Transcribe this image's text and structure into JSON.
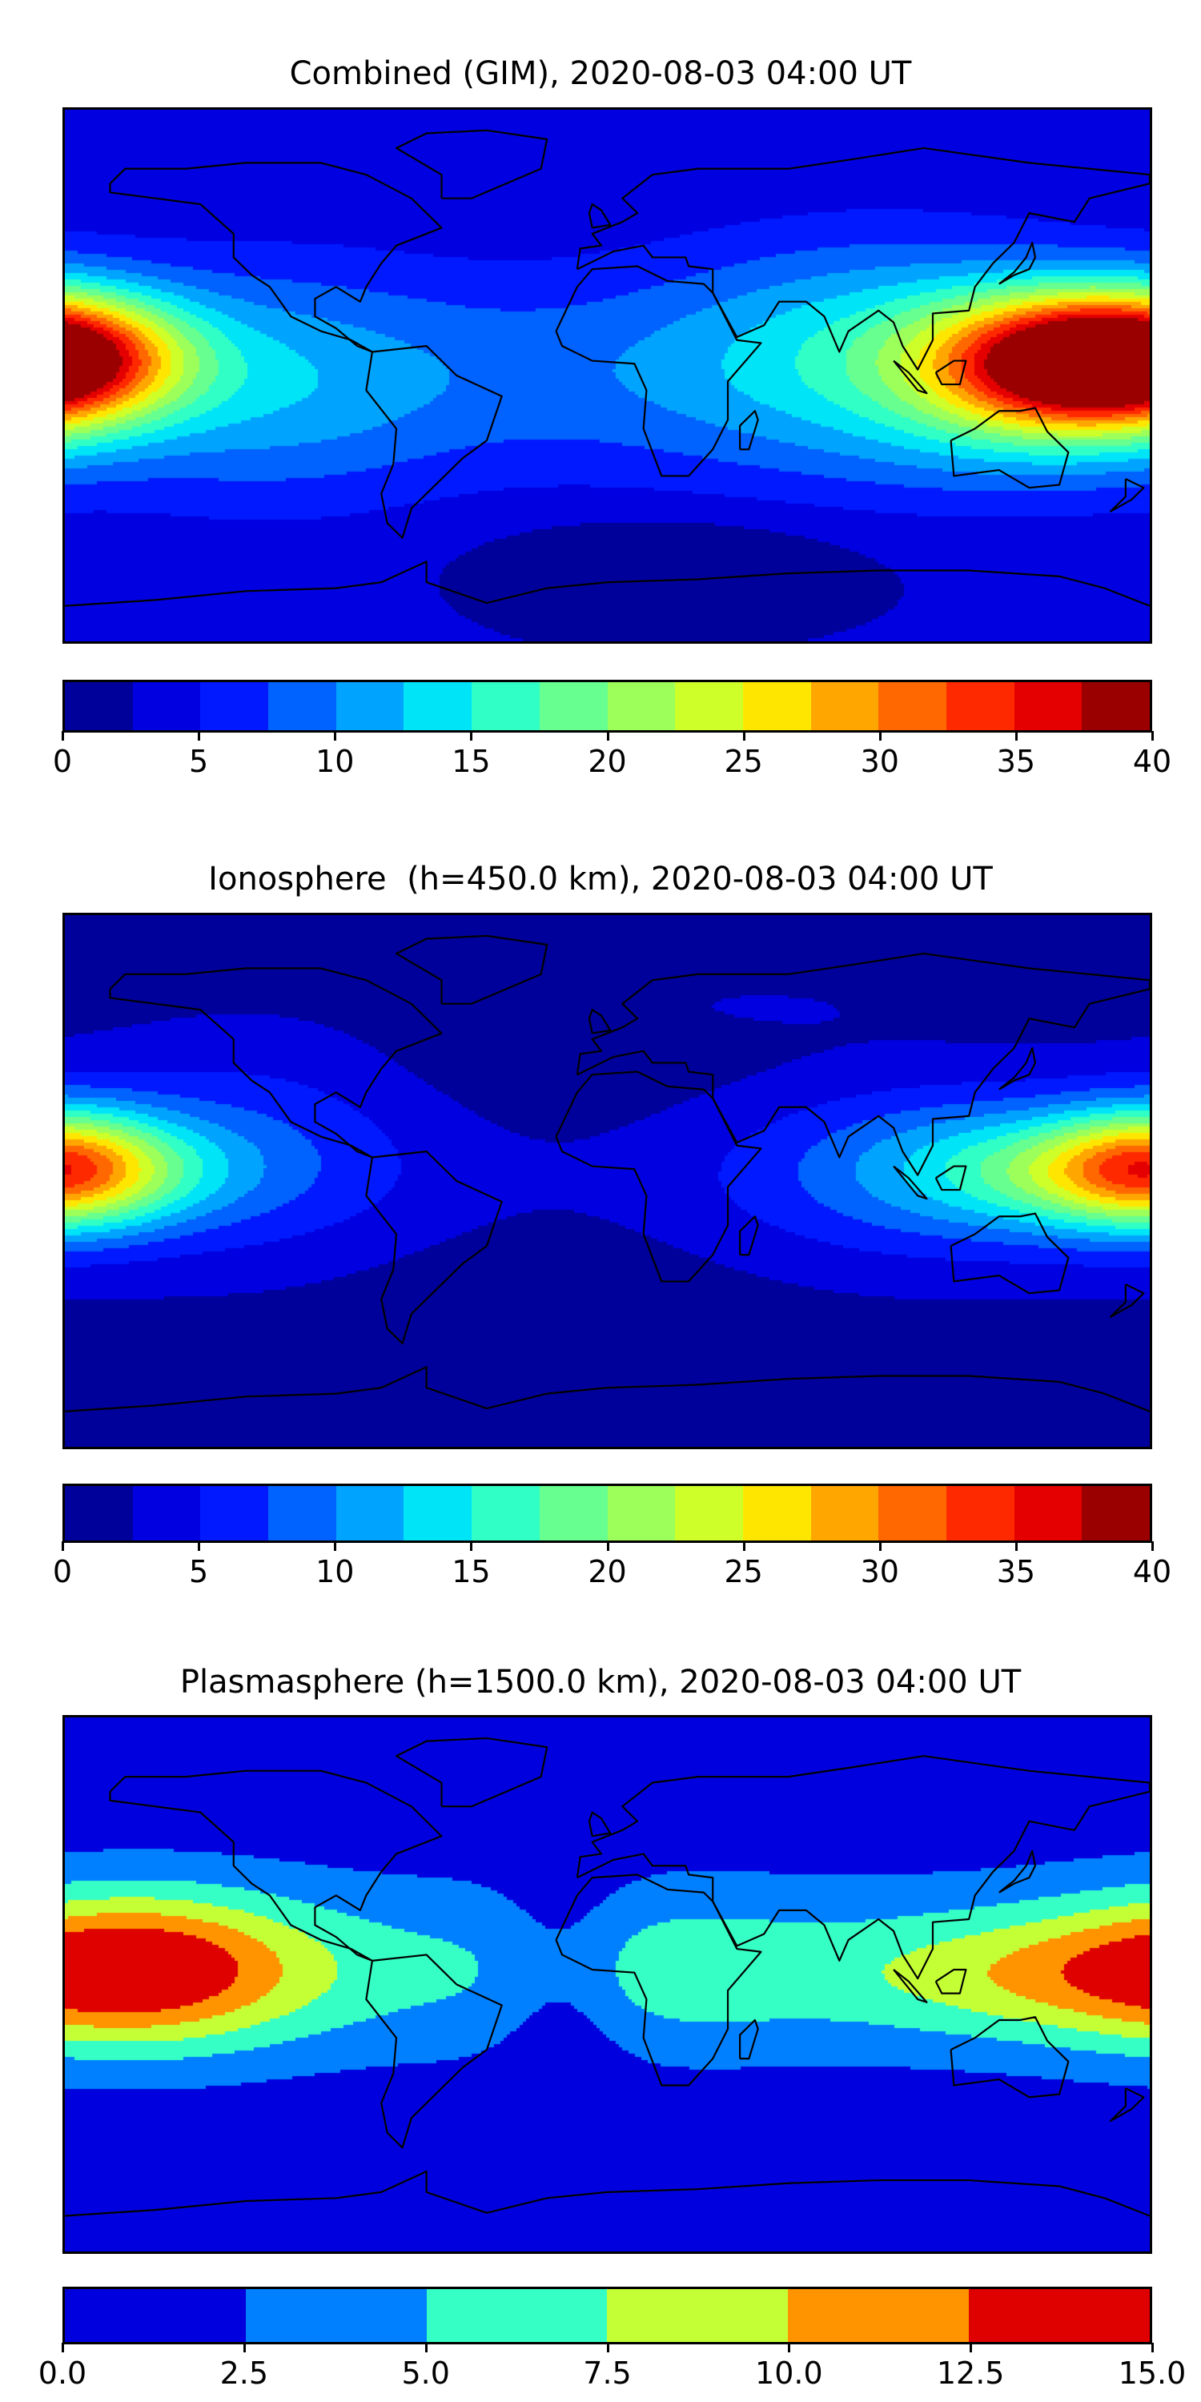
{
  "panels": [
    {
      "title": "Combined (GIM), 2020-08-03 04:00 UT",
      "levels": [
        0,
        2.5,
        5,
        7.5,
        10,
        12.5,
        15,
        17.5,
        20,
        22.5,
        25,
        27.5,
        30,
        32.5,
        35,
        37.5,
        40
      ],
      "colors": [
        "#00009a",
        "#0000e0",
        "#0019ff",
        "#0062ff",
        "#00a4ff",
        "#00e4f8",
        "#30ffc6",
        "#66ff90",
        "#9cff5a",
        "#ceff29",
        "#ffe600",
        "#ffa700",
        "#ff6800",
        "#ff2900",
        "#e40000",
        "#9a0000"
      ],
      "tick_labels": [
        "0",
        "5",
        "10",
        "15",
        "20",
        "25",
        "30",
        "35",
        "40"
      ],
      "tick_values": [
        0,
        5,
        10,
        15,
        20,
        25,
        30,
        35,
        40
      ]
    },
    {
      "title": "Ionosphere  (h=450.0 km), 2020-08-03 04:00 UT",
      "levels": [
        0,
        2.5,
        5,
        7.5,
        10,
        12.5,
        15,
        17.5,
        20,
        22.5,
        25,
        27.5,
        30,
        32.5,
        35,
        37.5,
        40
      ],
      "colors": [
        "#00009a",
        "#0000e0",
        "#0019ff",
        "#0062ff",
        "#00a4ff",
        "#00e4f8",
        "#30ffc6",
        "#66ff90",
        "#9cff5a",
        "#ceff29",
        "#ffe600",
        "#ffa700",
        "#ff6800",
        "#ff2900",
        "#e40000",
        "#9a0000"
      ],
      "tick_labels": [
        "0",
        "5",
        "10",
        "15",
        "20",
        "25",
        "30",
        "35",
        "40"
      ],
      "tick_values": [
        0,
        5,
        10,
        15,
        20,
        25,
        30,
        35,
        40
      ]
    },
    {
      "title": "Plasmasphere (h=1500.0 km), 2020-08-03 04:00 UT",
      "levels": [
        0,
        2.5,
        5,
        7.5,
        10,
        12.5,
        15
      ],
      "colors": [
        "#0000df",
        "#0080ff",
        "#36ffc6",
        "#c4ff36",
        "#ff9300",
        "#df0000"
      ],
      "tick_labels": [
        "0.0",
        "2.5",
        "5.0",
        "7.5",
        "10.0",
        "12.5",
        "15.0"
      ],
      "tick_values": [
        0,
        2.5,
        5,
        7.5,
        10,
        12.5,
        15
      ]
    }
  ]
}
